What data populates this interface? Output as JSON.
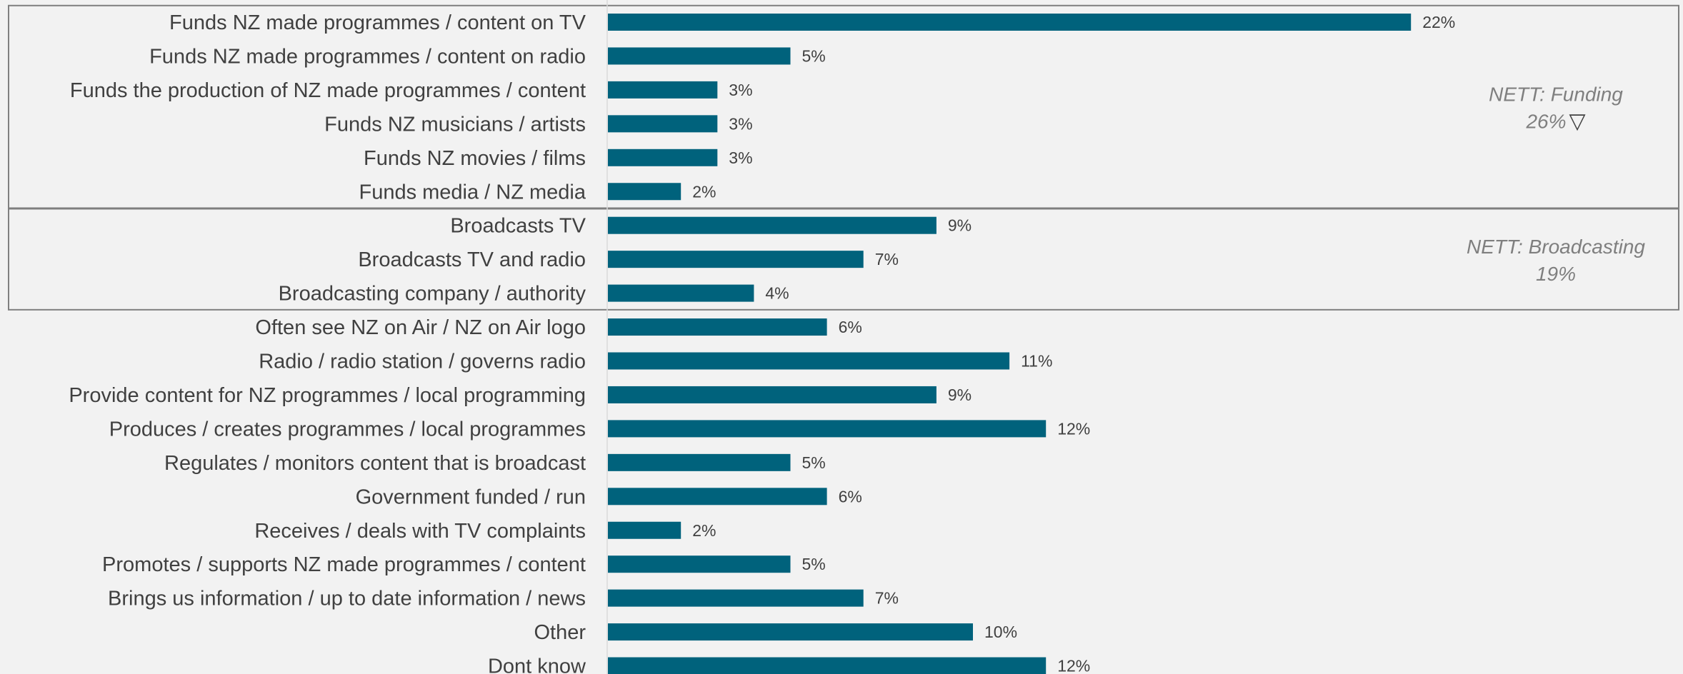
{
  "chart_data": {
    "type": "bar",
    "orientation": "horizontal",
    "categories": [
      "Funds NZ made programmes / content on TV",
      "Funds NZ made programmes / content on radio",
      "Funds the production of NZ made programmes / content",
      "Funds NZ musicians / artists",
      "Funds NZ movies / films",
      "Funds media / NZ media",
      "Broadcasts TV",
      "Broadcasts TV and radio",
      "Broadcasting company / authority",
      "Often see NZ on Air / NZ on Air logo",
      "Radio / radio station / governs radio",
      "Provide content for NZ programmes / local programming",
      "Produces / creates programmes / local programmes",
      "Regulates / monitors content that is broadcast",
      "Government funded / run",
      "Receives / deals with TV complaints",
      "Promotes / supports NZ made programmes / content",
      "Brings us information / up to date information / news",
      "Other",
      "Dont know"
    ],
    "values": [
      22,
      5,
      3,
      3,
      3,
      2,
      9,
      7,
      4,
      6,
      11,
      9,
      12,
      5,
      6,
      2,
      5,
      7,
      10,
      12
    ],
    "value_labels": [
      "22%",
      "5%",
      "3%",
      "3%",
      "3%",
      "2%",
      "9%",
      "7%",
      "4%",
      "6%",
      "11%",
      "9%",
      "12%",
      "5%",
      "6%",
      "2%",
      "5%",
      "7%",
      "10%",
      "12%"
    ],
    "xlim": [
      0,
      30
    ],
    "bar_color": "#00627c",
    "groups": [
      {
        "label": "NETT: Funding",
        "value": "26%",
        "marker": "▽",
        "start": 0,
        "end": 5
      },
      {
        "label": "NETT: Broadcasting",
        "value": "19%",
        "marker": "",
        "start": 6,
        "end": 8
      }
    ],
    "grid": false,
    "legend": "none",
    "title": "",
    "xlabel": "",
    "ylabel": ""
  }
}
